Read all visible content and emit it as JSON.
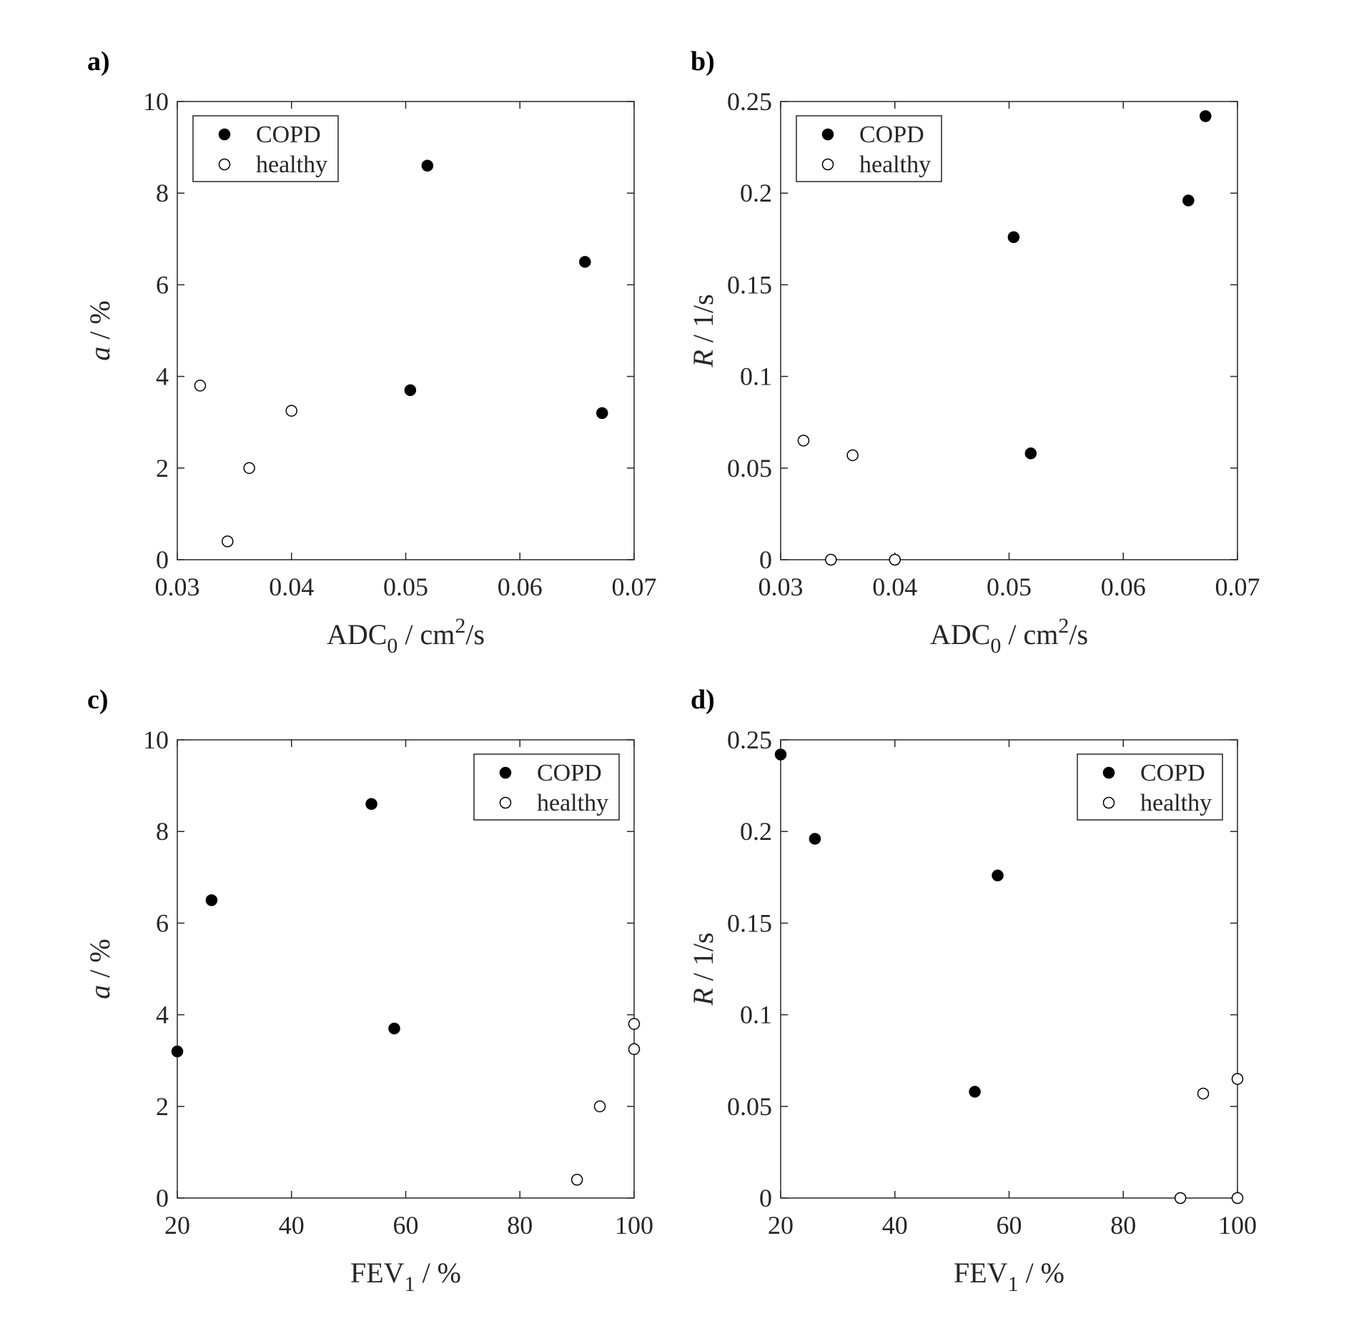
{
  "chart_data": [
    {
      "type": "scatter",
      "label": "a)",
      "xlabel": [
        {
          "text": "ADC"
        },
        {
          "text": "0",
          "style": "sub"
        },
        {
          "text": " / cm"
        },
        {
          "text": "2",
          "style": "sup"
        },
        {
          "text": "/s"
        }
      ],
      "ylabel": [
        {
          "text": "a",
          "style": "italic"
        },
        {
          "text": " / %"
        }
      ],
      "xlim": [
        0.03,
        0.07
      ],
      "xticks": [
        0.03,
        0.04,
        0.05,
        0.06,
        0.07
      ],
      "ylim": [
        0,
        10
      ],
      "yticks": [
        0,
        2,
        4,
        6,
        8,
        10
      ],
      "legend": "upper left",
      "series": [
        {
          "name": "COPD",
          "color": "#000000",
          "fill": "#000000",
          "x": [
            0.0519,
            0.0657,
            0.0504,
            0.0672
          ],
          "values": [
            8.6,
            6.5,
            3.7,
            3.2
          ]
        },
        {
          "name": "healthy",
          "color": "#000000",
          "fill": "#ffffff",
          "x": [
            0.032,
            0.0344,
            0.0363,
            0.04
          ],
          "values": [
            3.8,
            0.4,
            2.0,
            3.25
          ]
        }
      ]
    },
    {
      "type": "scatter",
      "label": "b)",
      "xlabel": [
        {
          "text": "ADC"
        },
        {
          "text": "0",
          "style": "sub"
        },
        {
          "text": " / cm"
        },
        {
          "text": "2",
          "style": "sup"
        },
        {
          "text": "/s"
        }
      ],
      "ylabel": [
        {
          "text": "R",
          "style": "italic"
        },
        {
          "text": " / 1/s"
        }
      ],
      "xlim": [
        0.03,
        0.07
      ],
      "xticks": [
        0.03,
        0.04,
        0.05,
        0.06,
        0.07
      ],
      "ylim": [
        0,
        0.25
      ],
      "yticks": [
        0,
        0.05,
        0.1,
        0.15,
        0.2,
        0.25
      ],
      "legend": "upper left",
      "series": [
        {
          "name": "COPD",
          "color": "#000000",
          "fill": "#000000",
          "x": [
            0.0519,
            0.0657,
            0.0504,
            0.0672
          ],
          "values": [
            0.058,
            0.196,
            0.176,
            0.242
          ]
        },
        {
          "name": "healthy",
          "color": "#000000",
          "fill": "#ffffff",
          "x": [
            0.032,
            0.0344,
            0.0363,
            0.04
          ],
          "values": [
            0.065,
            0,
            0.057,
            0
          ]
        }
      ]
    },
    {
      "type": "scatter",
      "label": "c)",
      "xlabel": [
        {
          "text": "FEV"
        },
        {
          "text": "1",
          "style": "sub"
        },
        {
          "text": " / %"
        }
      ],
      "ylabel": [
        {
          "text": "a",
          "style": "italic"
        },
        {
          "text": " / %"
        }
      ],
      "xlim": [
        20,
        100
      ],
      "xticks": [
        20,
        40,
        60,
        80,
        100
      ],
      "ylim": [
        0,
        10
      ],
      "yticks": [
        0,
        2,
        4,
        6,
        8,
        10
      ],
      "legend": "upper right",
      "series": [
        {
          "name": "COPD",
          "color": "#000000",
          "fill": "#000000",
          "x": [
            54,
            26,
            58,
            20
          ],
          "values": [
            8.6,
            6.5,
            3.7,
            3.2
          ]
        },
        {
          "name": "healthy",
          "color": "#000000",
          "fill": "#ffffff",
          "x": [
            100,
            90,
            94,
            100
          ],
          "values": [
            3.8,
            0.4,
            2.0,
            3.25
          ]
        }
      ]
    },
    {
      "type": "scatter",
      "label": "d)",
      "xlabel": [
        {
          "text": "FEV"
        },
        {
          "text": "1",
          "style": "sub"
        },
        {
          "text": " / %"
        }
      ],
      "ylabel": [
        {
          "text": "R",
          "style": "italic"
        },
        {
          "text": " / 1/s"
        }
      ],
      "xlim": [
        20,
        100
      ],
      "xticks": [
        20,
        40,
        60,
        80,
        100
      ],
      "ylim": [
        0,
        0.25
      ],
      "yticks": [
        0,
        0.05,
        0.1,
        0.15,
        0.2,
        0.25
      ],
      "legend": "upper right",
      "series": [
        {
          "name": "COPD",
          "color": "#000000",
          "fill": "#000000",
          "x": [
            54,
            26,
            58,
            20
          ],
          "values": [
            0.058,
            0.196,
            0.176,
            0.242
          ]
        },
        {
          "name": "healthy",
          "color": "#000000",
          "fill": "#ffffff",
          "x": [
            100,
            90,
            94,
            100
          ],
          "values": [
            0.065,
            0,
            0.057,
            0
          ]
        }
      ]
    }
  ]
}
